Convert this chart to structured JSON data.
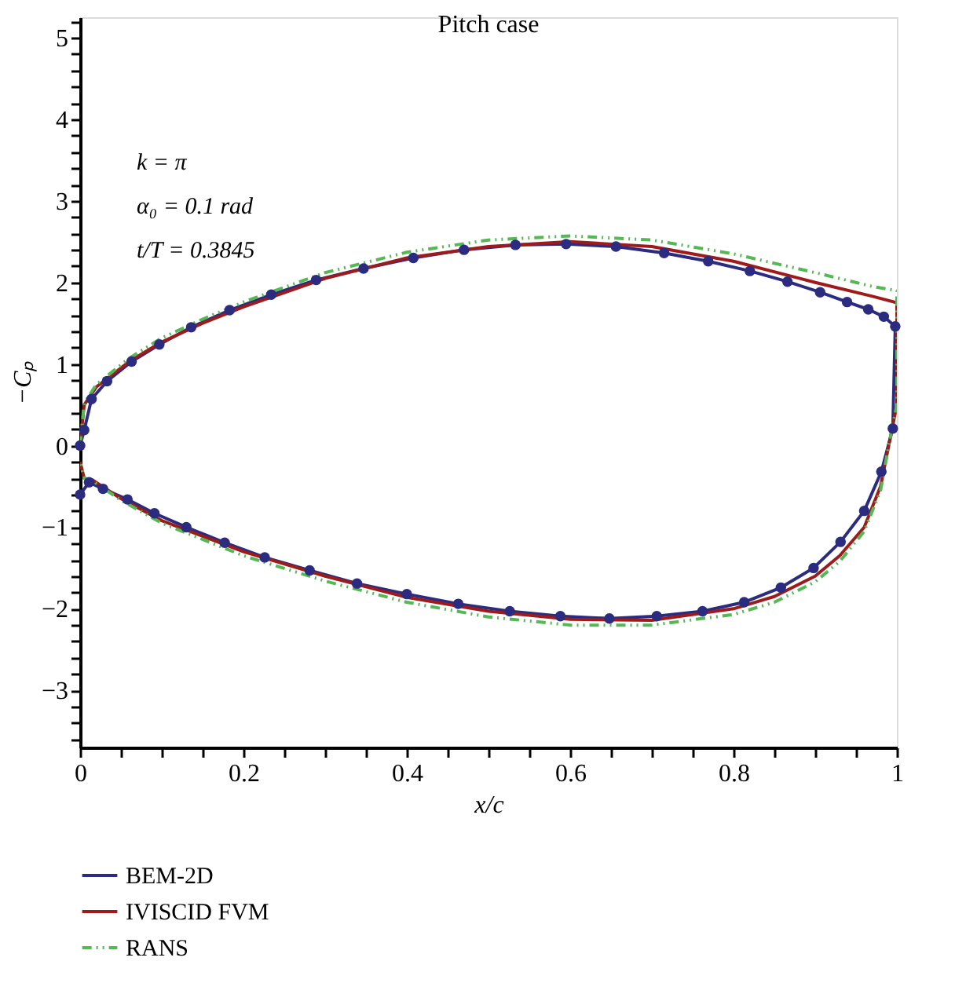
{
  "chart_data": {
    "type": "line",
    "title": "Pitch case",
    "xlabel": "x/c",
    "ylabel": "−Cₚ",
    "annotations": [
      "k = π",
      "α₀ = 0.1 rad",
      "t/T = 0.3845"
    ],
    "xlim": [
      0,
      1
    ],
    "ylim": [
      -3.7,
      5.25
    ],
    "xticks": [
      0,
      {
        "value": 0.05,
        "label": null
      },
      {
        "value": 0.1,
        "label": null
      },
      {
        "value": 0.15,
        "label": null
      },
      0.2,
      {
        "value": 0.25,
        "label": null
      },
      {
        "value": 0.3,
        "label": null
      },
      {
        "value": 0.35,
        "label": null
      },
      0.4,
      {
        "value": 0.45,
        "label": null
      },
      {
        "value": 0.5,
        "label": null
      },
      {
        "value": 0.55,
        "label": null
      },
      0.6,
      {
        "value": 0.65,
        "label": null
      },
      {
        "value": 0.7,
        "label": null
      },
      {
        "value": 0.75,
        "label": null
      },
      0.8,
      {
        "value": 0.85,
        "label": null
      },
      {
        "value": 0.9,
        "label": null
      },
      {
        "value": 0.95,
        "label": null
      },
      1
    ],
    "yticks": [
      -3,
      -2,
      -1,
      0,
      1,
      2,
      3,
      4,
      5,
      {
        "value": -3.6,
        "label": null
      },
      {
        "value": -3.4,
        "label": null
      },
      {
        "value": -3.2,
        "label": null
      },
      {
        "value": -2.8,
        "label": null
      },
      {
        "value": -2.6,
        "label": null
      },
      {
        "value": -2.4,
        "label": null
      },
      {
        "value": -2.2,
        "label": null
      },
      {
        "value": -1.8,
        "label": null
      },
      {
        "value": -1.6,
        "label": null
      },
      {
        "value": -1.4,
        "label": null
      },
      {
        "value": -1.2,
        "label": null
      },
      {
        "value": -0.8,
        "label": null
      },
      {
        "value": -0.6,
        "label": null
      },
      {
        "value": -0.4,
        "label": null
      },
      {
        "value": -0.2,
        "label": null
      },
      {
        "value": 0.2,
        "label": null
      },
      {
        "value": 0.4,
        "label": null
      },
      {
        "value": 0.6,
        "label": null
      },
      {
        "value": 0.8,
        "label": null
      },
      {
        "value": 1.2,
        "label": null
      },
      {
        "value": 1.4,
        "label": null
      },
      {
        "value": 1.6,
        "label": null
      },
      {
        "value": 1.8,
        "label": null
      },
      {
        "value": 2.2,
        "label": null
      },
      {
        "value": 2.4,
        "label": null
      },
      {
        "value": 2.6,
        "label": null
      },
      {
        "value": 2.8,
        "label": null
      },
      {
        "value": 3.2,
        "label": null
      },
      {
        "value": 3.4,
        "label": null
      },
      {
        "value": 3.6,
        "label": null
      },
      {
        "value": 3.8,
        "label": null
      },
      {
        "value": 4.2,
        "label": null
      },
      {
        "value": 4.4,
        "label": null
      },
      {
        "value": 4.6,
        "label": null
      },
      {
        "value": 4.8,
        "label": null
      },
      {
        "value": 5.2,
        "label": null
      }
    ],
    "grid": false,
    "legend": "bottom",
    "series": [
      {
        "name": "BEM-2D",
        "color": "#2b2b80",
        "marker": "circle",
        "line_style": "solid",
        "x": [
          0.0,
          0.005,
          0.014,
          0.033,
          0.063,
          0.097,
          0.136,
          0.183,
          0.234,
          0.289,
          0.347,
          0.408,
          0.47,
          0.533,
          0.595,
          0.656,
          0.715,
          0.769,
          0.82,
          0.866,
          0.906,
          0.939,
          0.965,
          0.984,
          0.998,
          0.995,
          0.981,
          0.96,
          0.931,
          0.898,
          0.858,
          0.813,
          0.762,
          0.706,
          0.648,
          0.588,
          0.526,
          0.463,
          0.4,
          0.339,
          0.281,
          0.226,
          0.177,
          0.13,
          0.091,
          0.058,
          0.028,
          0.011,
          0.0
        ],
        "values": [
          0.0,
          0.19,
          0.57,
          0.79,
          1.03,
          1.24,
          1.45,
          1.66,
          1.85,
          2.03,
          2.17,
          2.3,
          2.4,
          2.46,
          2.47,
          2.44,
          2.36,
          2.26,
          2.14,
          2.01,
          1.88,
          1.76,
          1.67,
          1.58,
          1.46,
          0.21,
          -0.32,
          -0.8,
          -1.18,
          -1.5,
          -1.74,
          -1.92,
          -2.03,
          -2.09,
          -2.12,
          -2.09,
          -2.03,
          -1.94,
          -1.82,
          -1.69,
          -1.53,
          -1.37,
          -1.19,
          -1.0,
          -0.83,
          -0.66,
          -0.53,
          -0.45,
          -0.6
        ]
      },
      {
        "name": "IVISCID FVM",
        "color": "#9e1b1b",
        "marker": "none",
        "line_style": "solid",
        "x": [
          0.0,
          0.005,
          0.02,
          0.06,
          0.1,
          0.15,
          0.2,
          0.3,
          0.4,
          0.5,
          0.6,
          0.7,
          0.8,
          0.9,
          0.97,
          1.0,
          1.0,
          0.99,
          0.98,
          0.96,
          0.93,
          0.9,
          0.85,
          0.8,
          0.7,
          0.6,
          0.5,
          0.4,
          0.3,
          0.2,
          0.1,
          0.05,
          0.015,
          0.005,
          0.0
        ],
        "values": [
          0.0,
          0.5,
          0.72,
          1.03,
          1.27,
          1.5,
          1.7,
          2.05,
          2.3,
          2.44,
          2.5,
          2.44,
          2.26,
          2.0,
          1.83,
          1.75,
          0.5,
          0.0,
          -0.5,
          -1.0,
          -1.35,
          -1.6,
          -1.85,
          -2.0,
          -2.14,
          -2.13,
          -2.03,
          -1.86,
          -1.6,
          -1.3,
          -0.92,
          -0.65,
          -0.42,
          -0.4,
          -0.2
        ]
      },
      {
        "name": "RANS",
        "color": "#55b855",
        "marker": "none",
        "line_style": "dashed",
        "x": [
          0.0,
          0.005,
          0.02,
          0.06,
          0.1,
          0.15,
          0.2,
          0.3,
          0.4,
          0.5,
          0.6,
          0.7,
          0.8,
          0.9,
          0.97,
          1.0,
          1.0,
          0.99,
          0.98,
          0.96,
          0.93,
          0.9,
          0.85,
          0.8,
          0.7,
          0.6,
          0.5,
          0.4,
          0.3,
          0.2,
          0.1,
          0.05,
          0.015,
          0.005,
          0.0
        ],
        "values": [
          0.0,
          0.52,
          0.75,
          1.07,
          1.32,
          1.55,
          1.76,
          2.12,
          2.37,
          2.52,
          2.57,
          2.52,
          2.35,
          2.12,
          1.95,
          1.9,
          0.5,
          0.0,
          -0.55,
          -1.05,
          -1.42,
          -1.67,
          -1.92,
          -2.07,
          -2.2,
          -2.2,
          -2.1,
          -1.92,
          -1.66,
          -1.35,
          -0.95,
          -0.67,
          -0.43,
          -0.4,
          -0.2
        ]
      }
    ]
  }
}
